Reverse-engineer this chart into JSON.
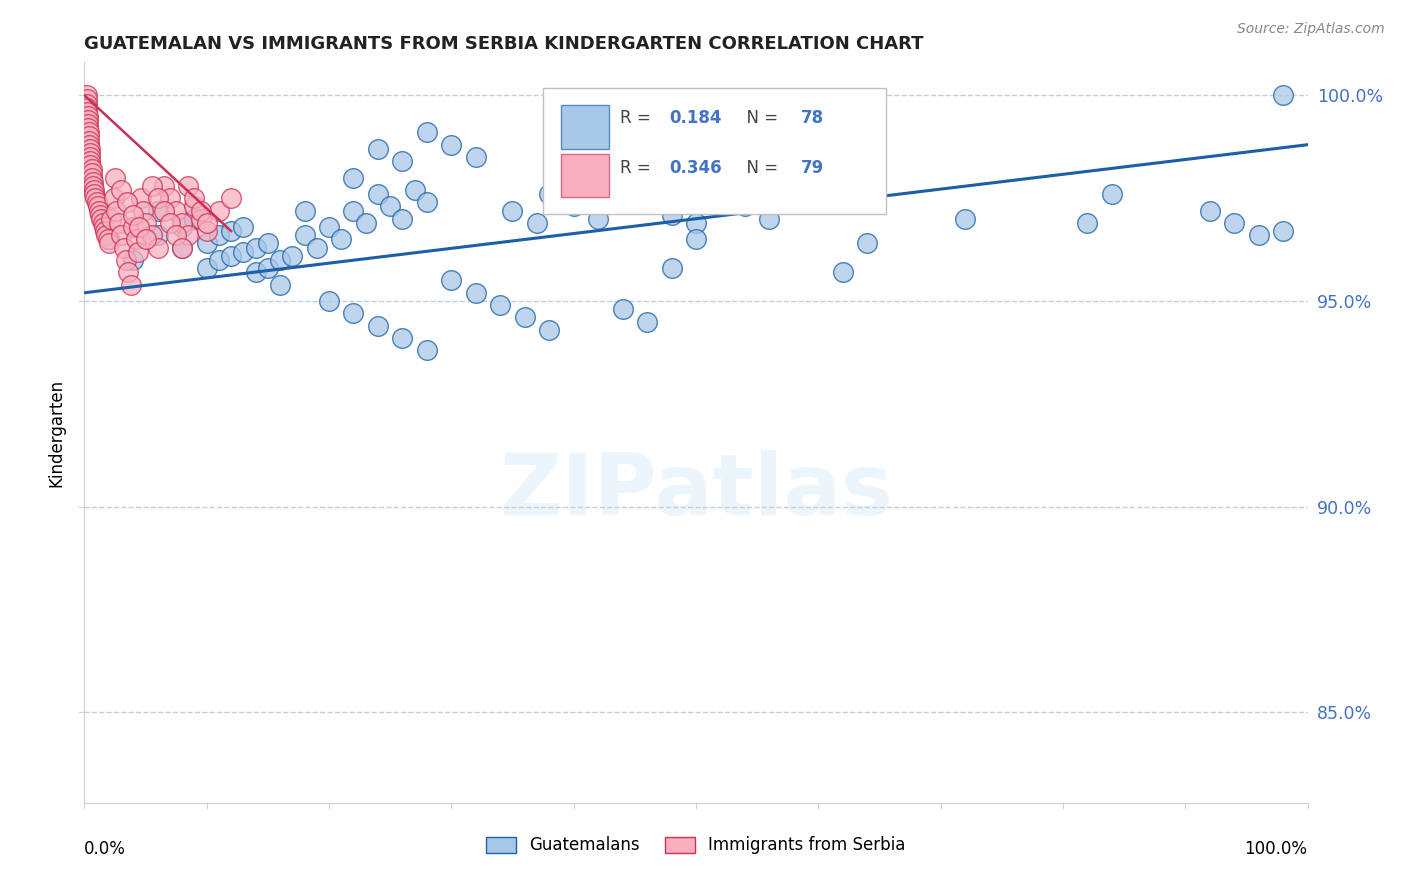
{
  "title": "GUATEMALAN VS IMMIGRANTS FROM SERBIA KINDERGARTEN CORRELATION CHART",
  "source": "Source: ZipAtlas.com",
  "ylabel": "Kindergarten",
  "ytick_labels": [
    "100.0%",
    "95.0%",
    "90.0%",
    "85.0%"
  ],
  "ytick_values": [
    1.0,
    0.95,
    0.9,
    0.85
  ],
  "xlim": [
    0.0,
    1.0
  ],
  "ylim": [
    0.828,
    1.008
  ],
  "blue_color": "#a8c8e8",
  "pink_color": "#f8b0c0",
  "line_color": "#1a5fa8",
  "pink_line_color": "#cc3050",
  "background_color": "#ffffff",
  "grid_color": "#c0d0e0",
  "watermark": "ZIPatlas",
  "blue_scatter_x": [
    0.02,
    0.04,
    0.06,
    0.06,
    0.08,
    0.08,
    0.09,
    0.1,
    0.1,
    0.11,
    0.11,
    0.12,
    0.12,
    0.13,
    0.13,
    0.14,
    0.14,
    0.15,
    0.15,
    0.16,
    0.16,
    0.17,
    0.18,
    0.18,
    0.19,
    0.2,
    0.21,
    0.22,
    0.23,
    0.24,
    0.25,
    0.26,
    0.27,
    0.28,
    0.22,
    0.24,
    0.26,
    0.28,
    0.3,
    0.32,
    0.35,
    0.37,
    0.38,
    0.4,
    0.42,
    0.44,
    0.46,
    0.48,
    0.5,
    0.52,
    0.54,
    0.56,
    0.62,
    0.64,
    0.72,
    0.82,
    0.84,
    0.92,
    0.94,
    0.96,
    0.98,
    0.48,
    0.5,
    0.3,
    0.32,
    0.34,
    0.36,
    0.38,
    0.44,
    0.46,
    0.2,
    0.22,
    0.24,
    0.26,
    0.28,
    0.98
  ],
  "blue_scatter_y": [
    0.965,
    0.96,
    0.972,
    0.966,
    0.968,
    0.963,
    0.97,
    0.964,
    0.958,
    0.966,
    0.96,
    0.967,
    0.961,
    0.968,
    0.962,
    0.963,
    0.957,
    0.964,
    0.958,
    0.96,
    0.954,
    0.961,
    0.972,
    0.966,
    0.963,
    0.968,
    0.965,
    0.972,
    0.969,
    0.976,
    0.973,
    0.97,
    0.977,
    0.974,
    0.98,
    0.987,
    0.984,
    0.991,
    0.988,
    0.985,
    0.972,
    0.969,
    0.976,
    0.973,
    0.97,
    0.977,
    0.974,
    0.971,
    0.969,
    0.976,
    0.973,
    0.97,
    0.957,
    0.964,
    0.97,
    0.969,
    0.976,
    0.972,
    0.969,
    0.966,
    1.0,
    0.958,
    0.965,
    0.955,
    0.952,
    0.949,
    0.946,
    0.943,
    0.948,
    0.945,
    0.95,
    0.947,
    0.944,
    0.941,
    0.938,
    0.967
  ],
  "pink_scatter_x": [
    0.002,
    0.002,
    0.002,
    0.002,
    0.002,
    0.003,
    0.003,
    0.003,
    0.003,
    0.004,
    0.004,
    0.004,
    0.004,
    0.005,
    0.005,
    0.005,
    0.005,
    0.005,
    0.006,
    0.006,
    0.006,
    0.007,
    0.007,
    0.008,
    0.008,
    0.009,
    0.01,
    0.011,
    0.012,
    0.013,
    0.014,
    0.015,
    0.016,
    0.017,
    0.018,
    0.019,
    0.02,
    0.022,
    0.024,
    0.026,
    0.028,
    0.03,
    0.032,
    0.034,
    0.036,
    0.038,
    0.04,
    0.042,
    0.044,
    0.046,
    0.048,
    0.05,
    0.055,
    0.06,
    0.065,
    0.07,
    0.075,
    0.08,
    0.085,
    0.09,
    0.095,
    0.1,
    0.11,
    0.12,
    0.025,
    0.03,
    0.035,
    0.04,
    0.045,
    0.05,
    0.055,
    0.06,
    0.065,
    0.07,
    0.075,
    0.08,
    0.085,
    0.09,
    0.095,
    0.1
  ],
  "pink_scatter_y": [
    1.0,
    0.999,
    0.998,
    0.997,
    0.996,
    0.995,
    0.994,
    0.993,
    0.992,
    0.991,
    0.99,
    0.989,
    0.988,
    0.987,
    0.986,
    0.985,
    0.984,
    0.983,
    0.982,
    0.981,
    0.98,
    0.979,
    0.978,
    0.977,
    0.976,
    0.975,
    0.974,
    0.973,
    0.972,
    0.971,
    0.97,
    0.969,
    0.968,
    0.967,
    0.966,
    0.965,
    0.964,
    0.97,
    0.975,
    0.972,
    0.969,
    0.966,
    0.963,
    0.96,
    0.957,
    0.954,
    0.968,
    0.965,
    0.962,
    0.975,
    0.972,
    0.969,
    0.966,
    0.963,
    0.978,
    0.975,
    0.972,
    0.969,
    0.966,
    0.973,
    0.97,
    0.967,
    0.972,
    0.975,
    0.98,
    0.977,
    0.974,
    0.971,
    0.968,
    0.965,
    0.978,
    0.975,
    0.972,
    0.969,
    0.966,
    0.963,
    0.978,
    0.975,
    0.972,
    0.969
  ],
  "blue_line_x": [
    0.0,
    1.0
  ],
  "blue_line_y_start": 0.952,
  "blue_line_y_end": 0.988,
  "pink_line_x": [
    0.0,
    0.12
  ],
  "pink_line_y_start": 1.0,
  "pink_line_y_end": 0.967
}
